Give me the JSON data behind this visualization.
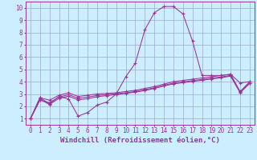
{
  "background_color": "#cceeff",
  "grid_color": "#99aacc",
  "line_color": "#993399",
  "xlabel": "Windchill (Refroidissement éolien,°C)",
  "xlabel_fontsize": 6.5,
  "tick_fontsize": 5.5,
  "xlim": [
    -0.5,
    23.5
  ],
  "ylim": [
    0.5,
    10.5
  ],
  "yticks": [
    1,
    2,
    3,
    4,
    5,
    6,
    7,
    8,
    9,
    10
  ],
  "xticks": [
    0,
    1,
    2,
    3,
    4,
    5,
    6,
    7,
    8,
    9,
    10,
    11,
    12,
    13,
    14,
    15,
    16,
    17,
    18,
    19,
    20,
    21,
    22,
    23
  ],
  "series1": [
    [
      0,
      1.0
    ],
    [
      1,
      2.7
    ],
    [
      2,
      2.2
    ],
    [
      3,
      2.8
    ],
    [
      4,
      2.6
    ],
    [
      5,
      1.2
    ],
    [
      6,
      1.5
    ],
    [
      7,
      2.1
    ],
    [
      8,
      2.35
    ],
    [
      9,
      3.0
    ],
    [
      10,
      4.4
    ],
    [
      11,
      5.5
    ],
    [
      12,
      8.2
    ],
    [
      13,
      9.6
    ],
    [
      14,
      10.1
    ],
    [
      15,
      10.1
    ],
    [
      16,
      9.5
    ],
    [
      17,
      7.3
    ],
    [
      18,
      4.5
    ],
    [
      19,
      4.5
    ],
    [
      20,
      4.5
    ],
    [
      21,
      4.6
    ],
    [
      22,
      3.9
    ],
    [
      23,
      4.0
    ]
  ],
  "series2": [
    [
      0,
      1.0
    ],
    [
      1,
      2.7
    ],
    [
      2,
      2.5
    ],
    [
      3,
      2.9
    ],
    [
      4,
      3.1
    ],
    [
      5,
      2.8
    ],
    [
      6,
      2.9
    ],
    [
      7,
      3.0
    ],
    [
      8,
      3.05
    ],
    [
      9,
      3.1
    ],
    [
      10,
      3.2
    ],
    [
      11,
      3.3
    ],
    [
      12,
      3.45
    ],
    [
      13,
      3.6
    ],
    [
      14,
      3.8
    ],
    [
      15,
      4.0
    ],
    [
      16,
      4.1
    ],
    [
      17,
      4.2
    ],
    [
      18,
      4.3
    ],
    [
      19,
      4.4
    ],
    [
      20,
      4.5
    ],
    [
      21,
      4.6
    ],
    [
      22,
      3.2
    ],
    [
      23,
      4.0
    ]
  ],
  "series3": [
    [
      0,
      1.0
    ],
    [
      1,
      2.5
    ],
    [
      2,
      2.3
    ],
    [
      3,
      2.75
    ],
    [
      4,
      2.95
    ],
    [
      5,
      2.65
    ],
    [
      6,
      2.75
    ],
    [
      7,
      2.88
    ],
    [
      8,
      2.95
    ],
    [
      9,
      3.02
    ],
    [
      10,
      3.1
    ],
    [
      11,
      3.2
    ],
    [
      12,
      3.35
    ],
    [
      13,
      3.5
    ],
    [
      14,
      3.7
    ],
    [
      15,
      3.88
    ],
    [
      16,
      3.98
    ],
    [
      17,
      4.08
    ],
    [
      18,
      4.18
    ],
    [
      19,
      4.28
    ],
    [
      20,
      4.38
    ],
    [
      21,
      4.5
    ],
    [
      22,
      3.15
    ],
    [
      23,
      3.9
    ]
  ],
  "series4": [
    [
      0,
      1.0
    ],
    [
      1,
      2.55
    ],
    [
      2,
      2.15
    ],
    [
      3,
      2.65
    ],
    [
      4,
      2.82
    ],
    [
      5,
      2.52
    ],
    [
      6,
      2.62
    ],
    [
      7,
      2.78
    ],
    [
      8,
      2.87
    ],
    [
      9,
      2.95
    ],
    [
      10,
      3.05
    ],
    [
      11,
      3.15
    ],
    [
      12,
      3.28
    ],
    [
      13,
      3.45
    ],
    [
      14,
      3.65
    ],
    [
      15,
      3.82
    ],
    [
      16,
      3.92
    ],
    [
      17,
      4.02
    ],
    [
      18,
      4.12
    ],
    [
      19,
      4.22
    ],
    [
      20,
      4.32
    ],
    [
      21,
      4.45
    ],
    [
      22,
      3.1
    ],
    [
      23,
      3.85
    ]
  ]
}
